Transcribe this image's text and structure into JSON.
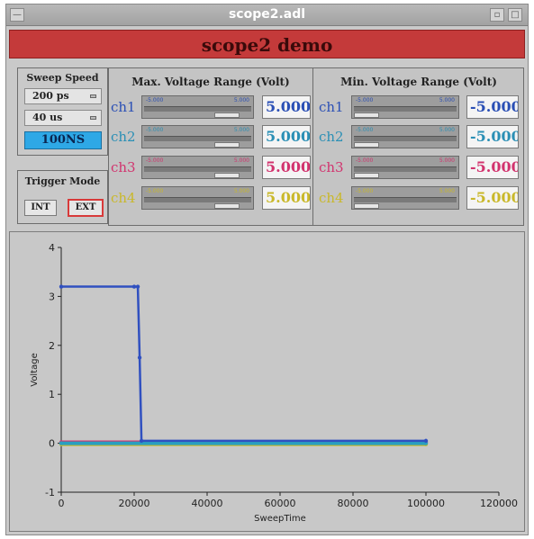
{
  "window": {
    "title": "scope2.adl"
  },
  "banner": {
    "title": "scope2 demo"
  },
  "sweep": {
    "title": "Sweep Speed",
    "menu1": "200 ps",
    "menu2": "40 us",
    "rate": "100NS"
  },
  "trigger": {
    "title": "Trigger Mode",
    "int_label": "INT",
    "ext_label": "EXT"
  },
  "max_panel": {
    "title": "Max. Voltage Range (Volt)",
    "rows": [
      {
        "label": "ch1",
        "color": "#2a4fb5",
        "lo": "-5.000",
        "hi": "5.000",
        "value": "5.000"
      },
      {
        "label": "ch2",
        "color": "#2a8fb5",
        "lo": "-5.000",
        "hi": "5.000",
        "value": "5.000"
      },
      {
        "label": "ch3",
        "color": "#d2336e",
        "lo": "-5.000",
        "hi": "5.000",
        "value": "5.000"
      },
      {
        "label": "ch4",
        "color": "#c9b82a",
        "lo": "-5.000",
        "hi": "5.000",
        "value": "5.000"
      }
    ]
  },
  "min_panel": {
    "title": "Min. Voltage Range (Volt)",
    "rows": [
      {
        "label": "ch1",
        "color": "#2a4fb5",
        "lo": "-5.000",
        "hi": "5.000",
        "value": "-5.000"
      },
      {
        "label": "ch2",
        "color": "#2a8fb5",
        "lo": "-5.000",
        "hi": "5.000",
        "value": "-5.000"
      },
      {
        "label": "ch3",
        "color": "#d2336e",
        "lo": "-5.000",
        "hi": "5.000",
        "value": "-5.000"
      },
      {
        "label": "ch4",
        "color": "#c9b82a",
        "lo": "-5.000",
        "hi": "5.000",
        "value": "-5.000"
      }
    ]
  },
  "chart_data": {
    "type": "line",
    "title": "",
    "xlabel": "SweepTime",
    "ylabel": "Voltage",
    "xlim": [
      0,
      120000
    ],
    "ylim": [
      -1,
      4
    ],
    "x_ticks": [
      0,
      20000,
      40000,
      60000,
      80000,
      100000,
      120000
    ],
    "y_ticks": [
      -1,
      0,
      1,
      2,
      3,
      4
    ],
    "grid": false,
    "series": [
      {
        "color": "#3050c0",
        "x": [
          0,
          20000,
          21000,
          21500,
          22000,
          100000
        ],
        "values": [
          3.2,
          3.2,
          3.2,
          1.75,
          0.05,
          0.05
        ]
      },
      {
        "color": "#2a9fc0",
        "x": [
          0,
          100000
        ],
        "values": [
          0.0,
          0.0
        ]
      },
      {
        "color": "#d2336e",
        "x": [
          0,
          100000
        ],
        "values": [
          0.02,
          0.02
        ]
      },
      {
        "color": "#c9b82a",
        "x": [
          0,
          100000
        ],
        "values": [
          -0.02,
          -0.02
        ]
      }
    ]
  }
}
